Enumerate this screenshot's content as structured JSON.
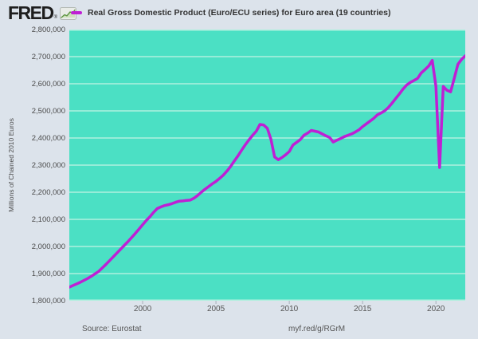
{
  "header": {
    "logo_text": "FRED",
    "registered_mark": "®",
    "legend_label": "Real Gross Domestic Product (Euro/ECU series) for Euro area (19 countries)"
  },
  "chart_data": {
    "type": "line",
    "title": "Real Gross Domestic Product (Euro/ECU series) for Euro area (19 countries)",
    "xlabel": "",
    "ylabel": "Millions of Chained 2010 Euros",
    "xlim": [
      1995,
      2022
    ],
    "ylim": [
      1800000,
      2800000
    ],
    "x_start": 1995.0,
    "x_step": 0.25,
    "frequency": "quarterly",
    "x_ticks": [
      2000,
      2005,
      2010,
      2015,
      2020
    ],
    "y_ticks": [
      1800000,
      1900000,
      2000000,
      2100000,
      2200000,
      2300000,
      2400000,
      2500000,
      2600000,
      2700000,
      2800000
    ],
    "grid": true,
    "legend_position": "top",
    "plot_bg": "#4be0c4",
    "grid_color": "#b0f0de",
    "tick_mark_color": "#a8b0ba",
    "series": [
      {
        "name": "Real Gross Domestic Product (Euro/ECU series) for Euro area (19 countries)",
        "color": "#bf1fd4",
        "values": [
          1850000,
          1856000,
          1862000,
          1868000,
          1875000,
          1882000,
          1890000,
          1899000,
          1908000,
          1921000,
          1934000,
          1948000,
          1962000,
          1976000,
          1990000,
          2004000,
          2018000,
          2033000,
          2048000,
          2064000,
          2080000,
          2096000,
          2110000,
          2126000,
          2140000,
          2146000,
          2151000,
          2154000,
          2158000,
          2163000,
          2167000,
          2168000,
          2170000,
          2171000,
          2178000,
          2188000,
          2200000,
          2211000,
          2221000,
          2231000,
          2240000,
          2251000,
          2263000,
          2278000,
          2295000,
          2315000,
          2334000,
          2355000,
          2375000,
          2393000,
          2410000,
          2425000,
          2450000,
          2448000,
          2436000,
          2395000,
          2330000,
          2320000,
          2328000,
          2338000,
          2350000,
          2374000,
          2384000,
          2394000,
          2410000,
          2418000,
          2428000,
          2425000,
          2422000,
          2415000,
          2408000,
          2402000,
          2385000,
          2392000,
          2398000,
          2405000,
          2410000,
          2415000,
          2422000,
          2430000,
          2442000,
          2452000,
          2462000,
          2472000,
          2485000,
          2492000,
          2500000,
          2512000,
          2528000,
          2545000,
          2562000,
          2580000,
          2595000,
          2605000,
          2612000,
          2620000,
          2640000,
          2652000,
          2665000,
          2686000,
          2590000,
          2291000,
          2590000,
          2576000,
          2570000,
          2620000,
          2672000,
          2690000,
          2703000
        ]
      }
    ]
  },
  "footer": {
    "source": "Source: Eurostat",
    "link": "myf.red/g/RGrM"
  }
}
